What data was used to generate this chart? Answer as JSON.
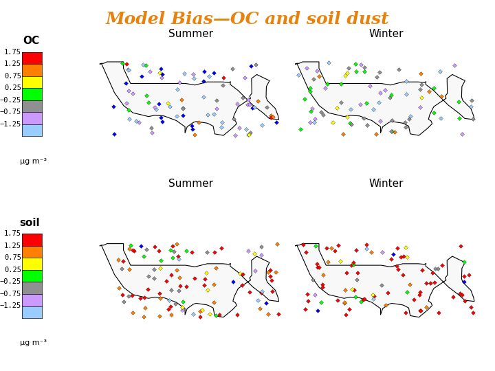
{
  "title": "Model Bias—OC and soil dust",
  "title_color": "#E8820C",
  "title_fontsize": 18,
  "title_style": "italic",
  "title_weight": "bold",
  "colorbar_labels": [
    "1.75",
    "1.25",
    "0.75",
    "0.25",
    "−0.25",
    "−0.75",
    "−1.25"
  ],
  "colorbar_colors": [
    "#FF0000",
    "#FF8000",
    "#FFFF00",
    "#00FF00",
    "#909090",
    "#CC99FF",
    "#99CCFF",
    "#0000FF"
  ],
  "colorbar_unit": "μg m⁻³",
  "row_labels": [
    "OC",
    "soil"
  ],
  "col_labels_top": [
    "Summer",
    "Winter"
  ],
  "col_labels_bot": [
    "Summer",
    "Winter"
  ],
  "background_color": "#FFFFFF",
  "map_extent": [
    -125,
    -65,
    23,
    55
  ],
  "figsize": [
    7.2,
    5.4
  ],
  "dpi": 100
}
